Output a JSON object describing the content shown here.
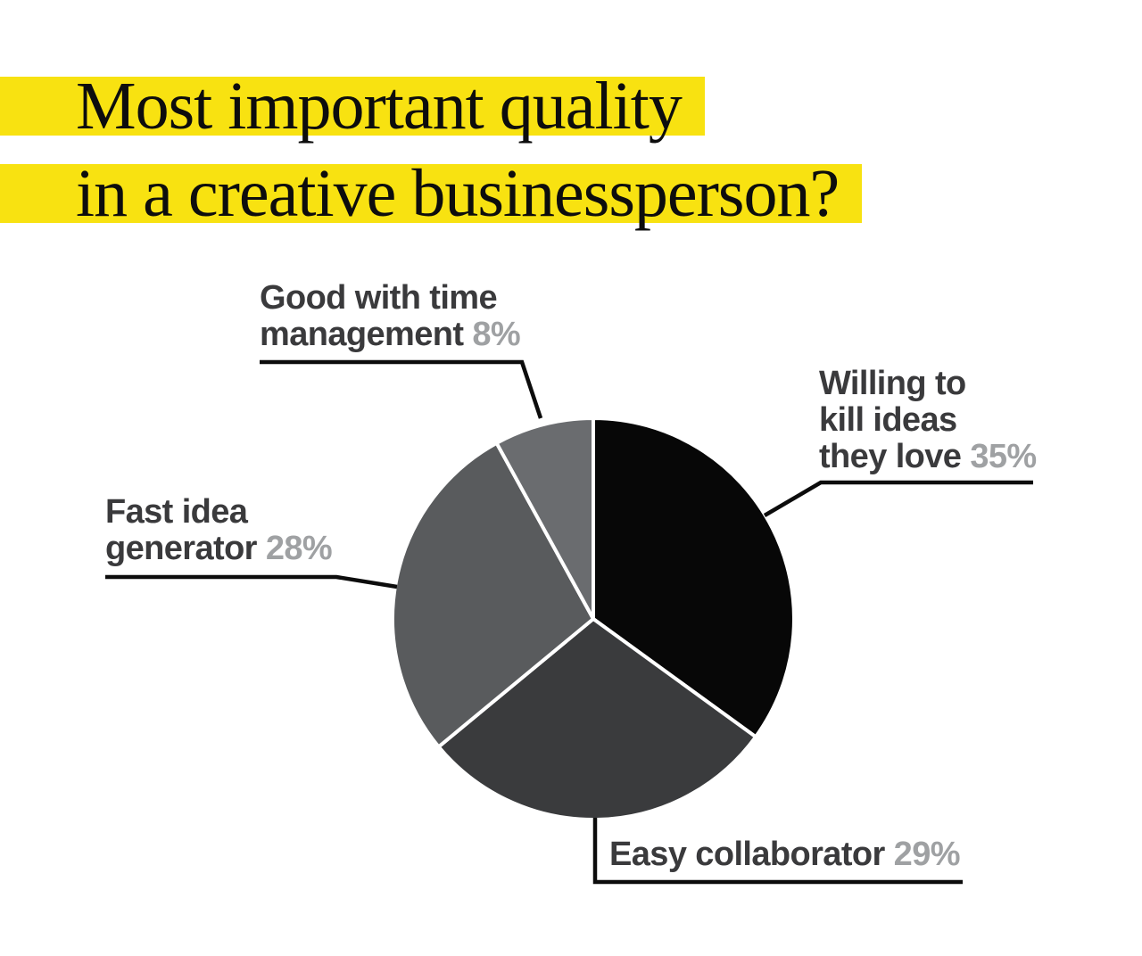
{
  "title": {
    "line1": "Most important quality",
    "line2": "in a creative businessperson?",
    "highlight_color": "#F8E211",
    "text_color": "#0d0d0d"
  },
  "colors": {
    "background": "#ffffff",
    "label": "#3a3a3c",
    "pct": "#9fa1a3",
    "leader": "#0c0c0c"
  },
  "callouts": [
    {
      "line1": "Good with time",
      "line2": "management",
      "pct": "8%"
    },
    {
      "line1": "Willing to",
      "line2": "kill ideas",
      "line3": "they love",
      "pct": "35%"
    },
    {
      "line1": "Fast idea",
      "line2": "generator",
      "pct": "28%"
    },
    {
      "line1": "Easy collaborator",
      "pct": "29%"
    }
  ],
  "chart_data": {
    "type": "pie",
    "title": "Most important quality in a creative businessperson?",
    "categories": [
      "Willing to kill ideas they love",
      "Easy collaborator",
      "Fast idea generator",
      "Good with time management"
    ],
    "values": [
      35,
      29,
      28,
      8
    ],
    "unit": "percent",
    "slice_colors": [
      "#070707",
      "#3a3b3d",
      "#595b5d",
      "#6a6c6f"
    ],
    "start_angle_deg": 0,
    "direction": "clockwise",
    "slice_gap_color": "#ffffff",
    "legend_position": "callouts-with-leader-lines"
  }
}
